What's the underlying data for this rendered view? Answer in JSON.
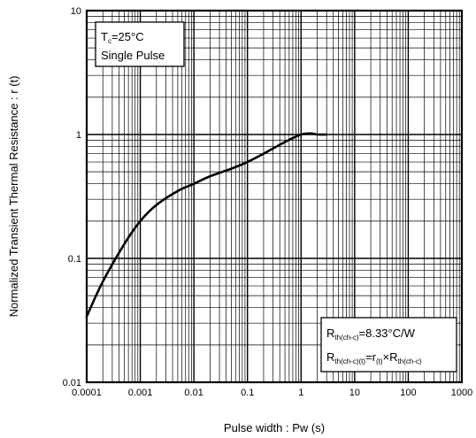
{
  "chart_data": {
    "type": "line",
    "title": "",
    "xlabel": "Pulse width : Pw (s)",
    "ylabel": "Normalized Transient Thermal Resistance : r (t)",
    "xscale": "log",
    "yscale": "log",
    "xlim": [
      0.0001,
      1000
    ],
    "ylim": [
      0.01,
      10
    ],
    "grid": true,
    "x_ticks": [
      "0.0001",
      "0.001",
      "0.01",
      "0.1",
      "1",
      "10",
      "100",
      "1000"
    ],
    "y_ticks": [
      "0.01",
      "0.1",
      "1",
      "10"
    ],
    "series": [
      {
        "x": [
          0.0001,
          0.0002,
          0.0005,
          0.001,
          0.002,
          0.005,
          0.01,
          0.02,
          0.05,
          0.1,
          0.2,
          0.5,
          1,
          1.5,
          2,
          3
        ],
        "y": [
          0.034,
          0.065,
          0.13,
          0.2,
          0.27,
          0.35,
          0.4,
          0.46,
          0.53,
          0.6,
          0.7,
          0.87,
          1.0,
          1.02,
          1.0,
          1.0
        ]
      }
    ],
    "annotations": {
      "box1": {
        "line1_main": "T",
        "line1_sub": "c",
        "line1_rest": "=25°C",
        "line2": "Single Pulse"
      },
      "box2": {
        "line1_main": "R",
        "line1_sub": "th(ch-c)",
        "line1_rest": "=8.33°C/W",
        "line2_a": "R",
        "line2_a_sub": "th(ch-c)(t)",
        "line2_b": "=r",
        "line2_b_sub": "(t)",
        "line2_c": "×R",
        "line2_c_sub": "th(ch-c)"
      }
    }
  }
}
